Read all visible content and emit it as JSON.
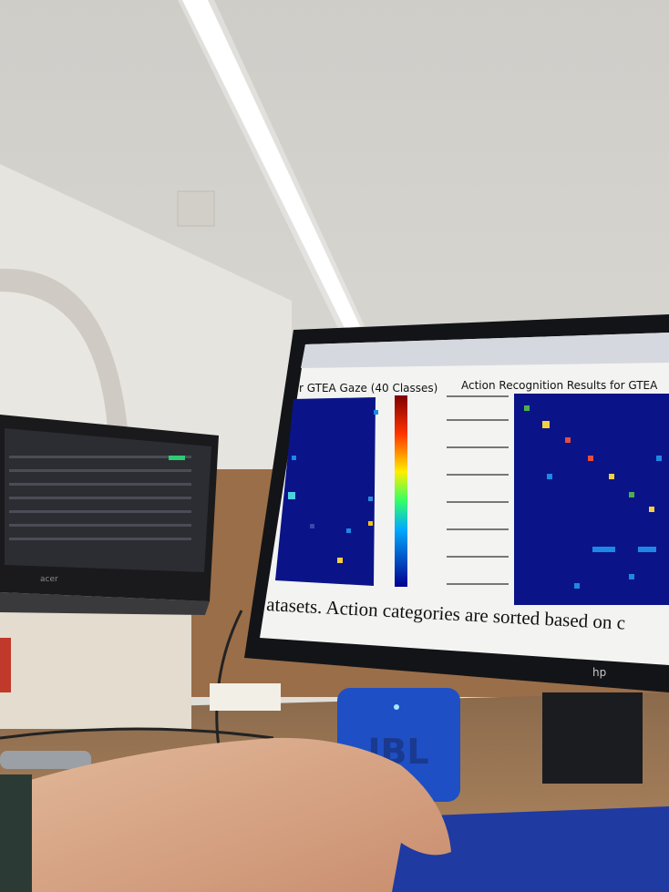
{
  "screen": {
    "left_title": "r GTEA Gaze (40 Classes)",
    "right_title": "Action Recognition Results for GTEA",
    "caption": "atasets.  Action categories are sorted based on c"
  },
  "laptop": {
    "brand": "acer"
  },
  "monitor": {
    "brand": "hp"
  },
  "speaker": {
    "brand": "JBL"
  }
}
